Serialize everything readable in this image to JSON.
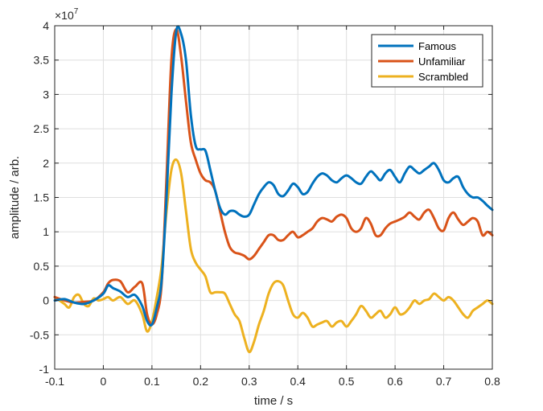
{
  "chart_data": {
    "type": "line",
    "xlabel": "time / s",
    "ylabel": "amplitude / arb.",
    "y_exponent_label": "×10",
    "y_exponent_power": "7",
    "xlim": [
      -0.1,
      0.8
    ],
    "ylim": [
      -1,
      4
    ],
    "x_ticks": [
      -0.1,
      0,
      0.1,
      0.2,
      0.3,
      0.4,
      0.5,
      0.6,
      0.7,
      0.8
    ],
    "x_tick_labels": [
      "-0.1",
      "0",
      "0.1",
      "0.2",
      "0.3",
      "0.4",
      "0.5",
      "0.6",
      "0.7",
      "0.8"
    ],
    "y_ticks": [
      -1,
      -0.5,
      0,
      0.5,
      1,
      1.5,
      2,
      2.5,
      3,
      3.5,
      4
    ],
    "y_tick_labels": [
      "-1",
      "-0.5",
      "0",
      "0.5",
      "1",
      "1.5",
      "2",
      "2.5",
      "3",
      "3.5",
      "4"
    ],
    "grid": true,
    "legend_position": "top-right",
    "series": [
      {
        "name": "Famous",
        "color": "#0072BD",
        "x": [
          -0.1,
          -0.08,
          -0.06,
          -0.04,
          -0.02,
          0.0,
          0.01,
          0.02,
          0.035,
          0.05,
          0.065,
          0.08,
          0.09,
          0.1,
          0.11,
          0.12,
          0.13,
          0.14,
          0.15,
          0.16,
          0.17,
          0.18,
          0.19,
          0.2,
          0.21,
          0.22,
          0.23,
          0.24,
          0.25,
          0.26,
          0.27,
          0.28,
          0.29,
          0.3,
          0.31,
          0.32,
          0.33,
          0.34,
          0.35,
          0.36,
          0.37,
          0.38,
          0.39,
          0.4,
          0.41,
          0.42,
          0.43,
          0.44,
          0.45,
          0.46,
          0.47,
          0.48,
          0.49,
          0.5,
          0.51,
          0.52,
          0.53,
          0.54,
          0.55,
          0.56,
          0.57,
          0.58,
          0.59,
          0.6,
          0.61,
          0.62,
          0.63,
          0.64,
          0.65,
          0.66,
          0.67,
          0.68,
          0.69,
          0.7,
          0.71,
          0.72,
          0.73,
          0.74,
          0.75,
          0.76,
          0.77,
          0.78,
          0.79,
          0.8
        ],
        "y": [
          0.0,
          0.02,
          -0.03,
          -0.05,
          0.0,
          0.1,
          0.22,
          0.18,
          0.13,
          0.05,
          0.08,
          -0.08,
          -0.3,
          -0.35,
          -0.1,
          0.3,
          1.5,
          3.0,
          3.92,
          3.88,
          3.5,
          2.7,
          2.25,
          2.2,
          2.18,
          1.9,
          1.6,
          1.35,
          1.25,
          1.3,
          1.3,
          1.25,
          1.22,
          1.25,
          1.4,
          1.55,
          1.65,
          1.72,
          1.68,
          1.55,
          1.52,
          1.6,
          1.7,
          1.65,
          1.55,
          1.58,
          1.7,
          1.8,
          1.85,
          1.82,
          1.75,
          1.72,
          1.78,
          1.82,
          1.78,
          1.72,
          1.7,
          1.8,
          1.88,
          1.82,
          1.75,
          1.85,
          1.9,
          1.8,
          1.72,
          1.85,
          1.95,
          1.9,
          1.85,
          1.9,
          1.95,
          2.0,
          1.9,
          1.75,
          1.72,
          1.78,
          1.8,
          1.65,
          1.55,
          1.5,
          1.5,
          1.45,
          1.38,
          1.32
        ]
      },
      {
        "name": "Unfamiliar",
        "color": "#D95319",
        "x": [
          -0.1,
          -0.08,
          -0.06,
          -0.04,
          -0.02,
          0.0,
          0.01,
          0.02,
          0.035,
          0.05,
          0.065,
          0.08,
          0.09,
          0.1,
          0.11,
          0.12,
          0.13,
          0.14,
          0.15,
          0.16,
          0.17,
          0.18,
          0.19,
          0.2,
          0.21,
          0.22,
          0.23,
          0.24,
          0.25,
          0.26,
          0.27,
          0.28,
          0.29,
          0.3,
          0.31,
          0.32,
          0.33,
          0.34,
          0.35,
          0.36,
          0.37,
          0.38,
          0.39,
          0.4,
          0.41,
          0.42,
          0.43,
          0.44,
          0.45,
          0.46,
          0.47,
          0.48,
          0.49,
          0.5,
          0.51,
          0.52,
          0.53,
          0.54,
          0.55,
          0.56,
          0.57,
          0.58,
          0.59,
          0.6,
          0.61,
          0.62,
          0.63,
          0.64,
          0.65,
          0.66,
          0.67,
          0.68,
          0.69,
          0.7,
          0.71,
          0.72,
          0.73,
          0.74,
          0.75,
          0.76,
          0.77,
          0.78,
          0.79,
          0.8
        ],
        "y": [
          0.05,
          0.0,
          -0.03,
          -0.02,
          0.0,
          0.12,
          0.25,
          0.3,
          0.28,
          0.12,
          0.2,
          0.25,
          -0.2,
          -0.35,
          -0.2,
          0.25,
          1.8,
          3.5,
          3.95,
          3.55,
          2.9,
          2.3,
          2.05,
          1.85,
          1.75,
          1.72,
          1.6,
          1.3,
          1.0,
          0.78,
          0.7,
          0.68,
          0.65,
          0.6,
          0.65,
          0.75,
          0.85,
          0.95,
          0.95,
          0.88,
          0.88,
          0.95,
          1.0,
          0.92,
          0.95,
          1.0,
          1.05,
          1.15,
          1.2,
          1.18,
          1.15,
          1.22,
          1.25,
          1.2,
          1.05,
          1.0,
          1.05,
          1.2,
          1.12,
          0.95,
          0.95,
          1.05,
          1.12,
          1.15,
          1.18,
          1.22,
          1.28,
          1.22,
          1.18,
          1.28,
          1.32,
          1.2,
          1.05,
          1.02,
          1.2,
          1.28,
          1.18,
          1.1,
          1.15,
          1.2,
          1.15,
          0.95,
          1.0,
          0.95
        ]
      },
      {
        "name": "Scrambled",
        "color": "#EDB120",
        "x": [
          -0.1,
          -0.09,
          -0.08,
          -0.07,
          -0.06,
          -0.05,
          -0.04,
          -0.03,
          -0.02,
          -0.01,
          0.0,
          0.01,
          0.02,
          0.035,
          0.05,
          0.065,
          0.08,
          0.09,
          0.1,
          0.11,
          0.12,
          0.13,
          0.14,
          0.15,
          0.16,
          0.17,
          0.18,
          0.19,
          0.2,
          0.21,
          0.22,
          0.23,
          0.24,
          0.25,
          0.26,
          0.27,
          0.28,
          0.29,
          0.3,
          0.31,
          0.32,
          0.33,
          0.34,
          0.35,
          0.36,
          0.37,
          0.38,
          0.39,
          0.4,
          0.41,
          0.42,
          0.43,
          0.44,
          0.45,
          0.46,
          0.47,
          0.48,
          0.49,
          0.5,
          0.51,
          0.52,
          0.53,
          0.54,
          0.55,
          0.56,
          0.57,
          0.58,
          0.59,
          0.6,
          0.61,
          0.62,
          0.63,
          0.64,
          0.65,
          0.66,
          0.67,
          0.68,
          0.69,
          0.7,
          0.71,
          0.72,
          0.73,
          0.74,
          0.75,
          0.76,
          0.77,
          0.78,
          0.79,
          0.8
        ],
        "y": [
          0.05,
          0.0,
          -0.05,
          -0.1,
          0.05,
          0.08,
          -0.05,
          -0.08,
          0.03,
          0.0,
          0.02,
          0.05,
          0.0,
          0.05,
          -0.05,
          0.0,
          -0.2,
          -0.45,
          -0.3,
          0.05,
          0.5,
          1.3,
          1.9,
          2.05,
          1.85,
          1.3,
          0.75,
          0.55,
          0.45,
          0.35,
          0.12,
          0.12,
          0.12,
          0.1,
          -0.05,
          -0.2,
          -0.3,
          -0.55,
          -0.75,
          -0.6,
          -0.35,
          -0.15,
          0.1,
          0.25,
          0.28,
          0.22,
          0.0,
          -0.2,
          -0.25,
          -0.18,
          -0.25,
          -0.38,
          -0.35,
          -0.32,
          -0.3,
          -0.38,
          -0.32,
          -0.3,
          -0.38,
          -0.3,
          -0.2,
          -0.08,
          -0.15,
          -0.25,
          -0.2,
          -0.15,
          -0.25,
          -0.2,
          -0.1,
          -0.2,
          -0.18,
          -0.1,
          0.0,
          -0.05,
          0.0,
          0.02,
          0.1,
          0.05,
          0.0,
          0.05,
          0.0,
          -0.1,
          -0.2,
          -0.25,
          -0.15,
          -0.1,
          -0.05,
          0.0,
          -0.05
        ]
      }
    ]
  }
}
